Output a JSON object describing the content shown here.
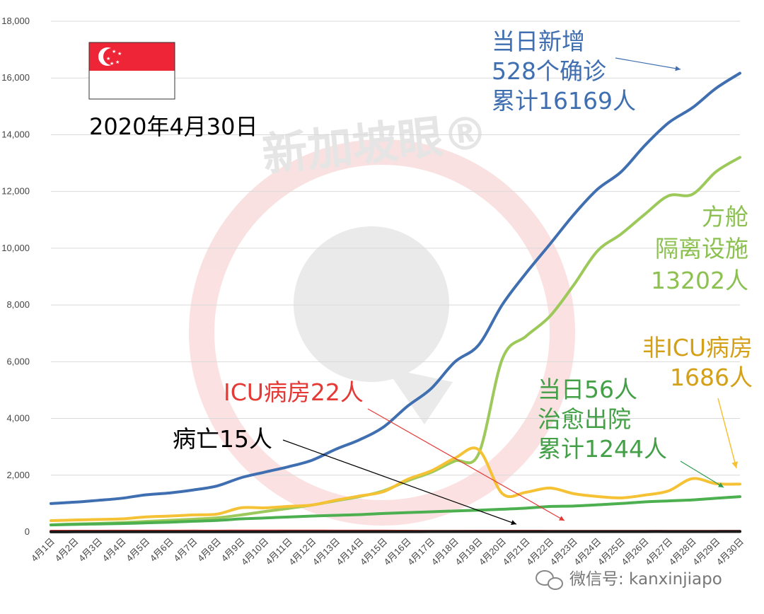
{
  "chart_data": {
    "type": "line",
    "title": "",
    "xlabel": "",
    "ylabel": "",
    "ylim": [
      0,
      18000
    ],
    "yticks": [
      0,
      2000,
      4000,
      6000,
      8000,
      10000,
      12000,
      14000,
      16000,
      18000
    ],
    "ytick_labels": [
      "0",
      "2,000",
      "4,000",
      "6,000",
      "8,000",
      "10,000",
      "12,000",
      "14,000",
      "16,000",
      "18,000"
    ],
    "grid": true,
    "legend": "none",
    "categories": [
      "4月1日",
      "4月2日",
      "4月3日",
      "4月4日",
      "4月5日",
      "4月6日",
      "4月7日",
      "4月8日",
      "4月9日",
      "4月10日",
      "4月11日",
      "4月12日",
      "4月13日",
      "4月14日",
      "4月15日",
      "4月16日",
      "4月17日",
      "4月18日",
      "4月19日",
      "4月20日",
      "4月21日",
      "4月22日",
      "4月23日",
      "4月24日",
      "4月25日",
      "4月26日",
      "4月27日",
      "4月28日",
      "4月29日",
      "4月30日"
    ],
    "series": [
      {
        "color": "#3f6fb0",
        "values": [
          1000,
          1049,
          1114,
          1189,
          1309,
          1375,
          1481,
          1623,
          1910,
          2108,
          2299,
          2532,
          2918,
          3252,
          3699,
          4427,
          5050,
          5992,
          6588,
          8014,
          9125,
          10141,
          11178,
          12075,
          12693,
          13624,
          14423,
          14951,
          15641,
          16169
        ]
      },
      {
        "color": "#9cc95a",
        "values": [
          250,
          280,
          300,
          330,
          370,
          410,
          450,
          500,
          600,
          720,
          830,
          950,
          1100,
          1250,
          1450,
          1800,
          2100,
          2500,
          2750,
          6100,
          6900,
          7600,
          8700,
          9900,
          10500,
          11200,
          11850,
          11900,
          12700,
          13202
        ]
      },
      {
        "color": "#f5c236",
        "values": [
          400,
          420,
          440,
          460,
          530,
          560,
          600,
          630,
          850,
          850,
          900,
          950,
          1120,
          1270,
          1420,
          1850,
          2150,
          2600,
          2900,
          1350,
          1400,
          1550,
          1350,
          1250,
          1200,
          1300,
          1450,
          1880,
          1700,
          1686
        ]
      },
      {
        "color": "#4caf50",
        "values": [
          245,
          266,
          282,
          297,
          320,
          344,
          377,
          406,
          460,
          492,
          528,
          560,
          586,
          611,
          652,
          683,
          711,
          740,
          768,
          801,
          839,
          896,
          914,
          956,
          1002,
          1060,
          1095,
          1128,
          1188,
          1244
        ]
      },
      {
        "color": "#e53935",
        "values": [
          24,
          26,
          26,
          28,
          29,
          29,
          30,
          29,
          31,
          32,
          32,
          31,
          29,
          29,
          28,
          25,
          23,
          23,
          24,
          25,
          25,
          23,
          23,
          22,
          22,
          22,
          22,
          22,
          22,
          22
        ]
      },
      {
        "color": "#1a1a1a",
        "values": [
          3,
          5,
          6,
          6,
          6,
          6,
          6,
          6,
          7,
          7,
          8,
          8,
          8,
          10,
          10,
          10,
          11,
          11,
          11,
          11,
          11,
          12,
          12,
          12,
          12,
          14,
          14,
          14,
          14,
          15
        ]
      }
    ],
    "annotations": [
      {
        "id": "confirmed",
        "color": "#3f6fb0",
        "lines": [
          "当日新增",
          "528个确诊",
          "累计16169人"
        ]
      },
      {
        "id": "facility",
        "color": "#8cc152",
        "lines": [
          "方舱",
          "隔离设施",
          "13202人"
        ]
      },
      {
        "id": "ward",
        "color": "#d4a017",
        "lines": [
          "非ICU病房",
          "1686人"
        ]
      },
      {
        "id": "discharged",
        "color": "#43a047",
        "lines": [
          "当日56人",
          "治愈出院",
          "累计1244人"
        ]
      },
      {
        "id": "icu",
        "color": "#e53935",
        "lines": [
          "ICU病房22人"
        ]
      },
      {
        "id": "deaths",
        "color": "#000000",
        "lines": [
          "病亡15人"
        ]
      }
    ]
  },
  "date_label": "2020年4月30日",
  "flag": {
    "name": "singapore-flag",
    "red": "#ee2536",
    "white": "#ffffff"
  },
  "watermark": {
    "text": "新加坡眼®",
    "color": "#f3c6c6"
  },
  "footer": {
    "brand": "微信号: kanxinjiapo"
  }
}
